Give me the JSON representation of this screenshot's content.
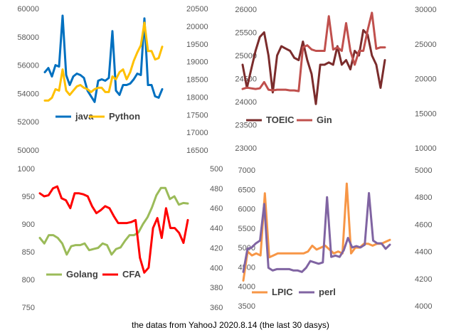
{
  "caption": "the datas  from YahooJ     2020.8.14  (the last 30 dasys)",
  "colors": {
    "java": "#0070C0",
    "Python": "#FFC000",
    "TOEIC": "#7B2C2C",
    "Gin": "#C0504D",
    "Golang": "#9BBB59",
    "CFA": "#FF0000",
    "LPIC": "#F79646",
    "perl": "#8064A2",
    "tick": "#595959"
  },
  "chart_data": [
    {
      "type": "line",
      "left_axis": {
        "ylim": [
          50000,
          60000
        ],
        "ticks": [
          "60000",
          "58000",
          "56000",
          "54000",
          "52000",
          "50000"
        ]
      },
      "right_axis": {
        "ylim": [
          16500,
          20500
        ],
        "ticks": [
          "20500",
          "20000",
          "19500",
          "19000",
          "18500",
          "18000",
          "17500",
          "17000",
          "16500"
        ]
      },
      "series": [
        {
          "name": "java",
          "axis": "left",
          "values": [
            55500,
            55800,
            55200,
            56000,
            55900,
            59500,
            55300,
            54600,
            55200,
            55400,
            55300,
            55100,
            54200,
            53800,
            53400,
            54900,
            55000,
            54900,
            55100,
            58400,
            54200,
            53900,
            54600,
            54600,
            54700,
            55000,
            55400,
            55300,
            59300,
            54600,
            54600,
            53800,
            53700,
            54300
          ]
        },
        {
          "name": "Python",
          "axis": "left",
          "values": [
            53500,
            53500,
            53700,
            54300,
            54200,
            55700,
            54200,
            53900,
            54200,
            54500,
            54600,
            54400,
            54300,
            54100,
            54300,
            54400,
            54400,
            54100,
            54100,
            55200,
            55000,
            55500,
            55700,
            55000,
            55500,
            56300,
            56900,
            57400,
            59000,
            57000,
            57000,
            56400,
            56500,
            57300
          ]
        }
      ]
    },
    {
      "type": "line",
      "left_axis": {
        "ylim": [
          23000,
          26000
        ],
        "ticks": [
          "26000",
          "25500",
          "25000",
          "24500",
          "24000",
          "23500",
          "23000"
        ]
      },
      "right_axis": {
        "ylim": [
          10000,
          30000
        ],
        "ticks": [
          "30000",
          "25000",
          "20000",
          "15000",
          "10000"
        ]
      },
      "series": [
        {
          "name": "TOEIC",
          "axis": "left",
          "values": [
            24800,
            24300,
            24700,
            25100,
            25400,
            25500,
            25000,
            24200,
            25000,
            25200,
            25150,
            25100,
            24950,
            24900,
            25300,
            24900,
            24600,
            23950,
            24800,
            24800,
            24850,
            24800,
            25200,
            24800,
            24900,
            24700,
            25100,
            25000,
            25550,
            25450,
            25000,
            24800,
            24300,
            24900
          ]
        },
        {
          "name": "Gin",
          "axis": "right",
          "values": [
            18500,
            18700,
            18600,
            18500,
            18600,
            19500,
            18400,
            18300,
            18400,
            18400,
            18400,
            18300,
            18300,
            18200,
            24500,
            24800,
            24200,
            24000,
            24000,
            24000,
            29000,
            24200,
            24500,
            24000,
            28000,
            24000,
            22000,
            24000,
            24000,
            27000,
            29500,
            24300,
            24500,
            24500
          ]
        }
      ]
    },
    {
      "type": "line",
      "left_axis": {
        "ylim": [
          750,
          1000
        ],
        "ticks": [
          "1000",
          "950",
          "900",
          "850",
          "800",
          "750"
        ]
      },
      "right_axis": {
        "ylim": [
          360,
          500
        ],
        "ticks": [
          "500",
          "480",
          "460",
          "440",
          "420",
          "400",
          "380",
          "360"
        ]
      },
      "series": [
        {
          "name": "Golang",
          "axis": "left",
          "values": [
            875,
            865,
            880,
            880,
            875,
            865,
            845,
            860,
            862,
            862,
            865,
            853,
            855,
            857,
            865,
            862,
            845,
            855,
            858,
            870,
            880,
            880,
            885,
            900,
            912,
            930,
            952,
            965,
            965,
            945,
            950,
            935,
            938,
            937
          ]
        },
        {
          "name": "CFA",
          "axis": "right",
          "values": [
            475,
            472,
            473,
            480,
            482,
            470,
            468,
            460,
            475,
            475,
            474,
            472,
            462,
            455,
            458,
            462,
            460,
            452,
            445,
            445,
            445,
            446,
            448,
            410,
            395,
            400,
            440,
            450,
            430,
            460,
            440,
            440,
            435,
            425,
            448
          ]
        }
      ]
    },
    {
      "type": "line",
      "left_axis": {
        "ylim": [
          3500,
          7000
        ],
        "ticks": [
          "7000",
          "6500",
          "6000",
          "5500",
          "5000",
          "4500",
          "4000",
          "3500"
        ]
      },
      "right_axis": {
        "ylim": [
          4000,
          5000
        ],
        "ticks": [
          "5000",
          "4800",
          "4600",
          "4400",
          "4200",
          "4000"
        ]
      },
      "series": [
        {
          "name": "LPIC",
          "axis": "left",
          "values": [
            4150,
            4900,
            4800,
            4850,
            4800,
            6400,
            4750,
            4800,
            4850,
            4850,
            4850,
            4850,
            4850,
            4850,
            4850,
            4900,
            5050,
            4950,
            5000,
            5050,
            4950,
            4850,
            4900,
            4850,
            6650,
            4850,
            5000,
            5000,
            5100,
            5100,
            5050,
            5100,
            5100,
            5150,
            5200
          ]
        },
        {
          "name": "perl",
          "axis": "right",
          "values": [
            4250,
            4420,
            4430,
            4460,
            4480,
            4750,
            4280,
            4260,
            4270,
            4270,
            4270,
            4270,
            4260,
            4260,
            4250,
            4280,
            4330,
            4320,
            4310,
            4320,
            4800,
            4360,
            4370,
            4360,
            4410,
            4500,
            4430,
            4440,
            4430,
            4450,
            4830,
            4480,
            4460,
            4460,
            4420,
            4450
          ]
        }
      ]
    }
  ]
}
